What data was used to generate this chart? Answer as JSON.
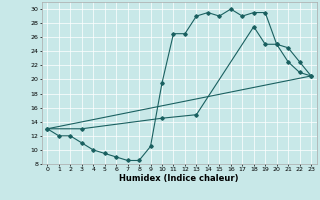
{
  "xlabel": "Humidex (Indice chaleur)",
  "xlim": [
    -0.5,
    23.5
  ],
  "ylim": [
    8,
    31
  ],
  "yticks": [
    8,
    10,
    12,
    14,
    16,
    18,
    20,
    22,
    24,
    26,
    28,
    30
  ],
  "xticks": [
    0,
    1,
    2,
    3,
    4,
    5,
    6,
    7,
    8,
    9,
    10,
    11,
    12,
    13,
    14,
    15,
    16,
    17,
    18,
    19,
    20,
    21,
    22,
    23
  ],
  "background_color": "#c8e8e8",
  "line_color": "#1a6060",
  "line1_x": [
    0,
    1,
    2,
    3,
    4,
    5,
    6,
    7,
    8,
    9,
    10,
    11,
    12,
    13,
    14,
    15,
    16,
    17,
    18,
    19,
    20,
    21,
    22,
    23
  ],
  "line1_y": [
    13,
    12,
    12,
    11,
    10,
    9.5,
    9,
    8.5,
    8.5,
    10.5,
    19.5,
    26.5,
    26.5,
    29,
    29.5,
    29,
    30,
    29,
    29.5,
    29.5,
    25,
    24.5,
    22.5,
    20.5
  ],
  "line2_x": [
    0,
    3,
    10,
    13,
    18,
    19,
    20,
    21,
    22,
    23
  ],
  "line2_y": [
    13,
    13,
    14.5,
    15,
    27.5,
    25,
    25,
    22.5,
    21,
    20.5
  ],
  "line3_x": [
    0,
    23
  ],
  "line3_y": [
    13,
    20.5
  ]
}
